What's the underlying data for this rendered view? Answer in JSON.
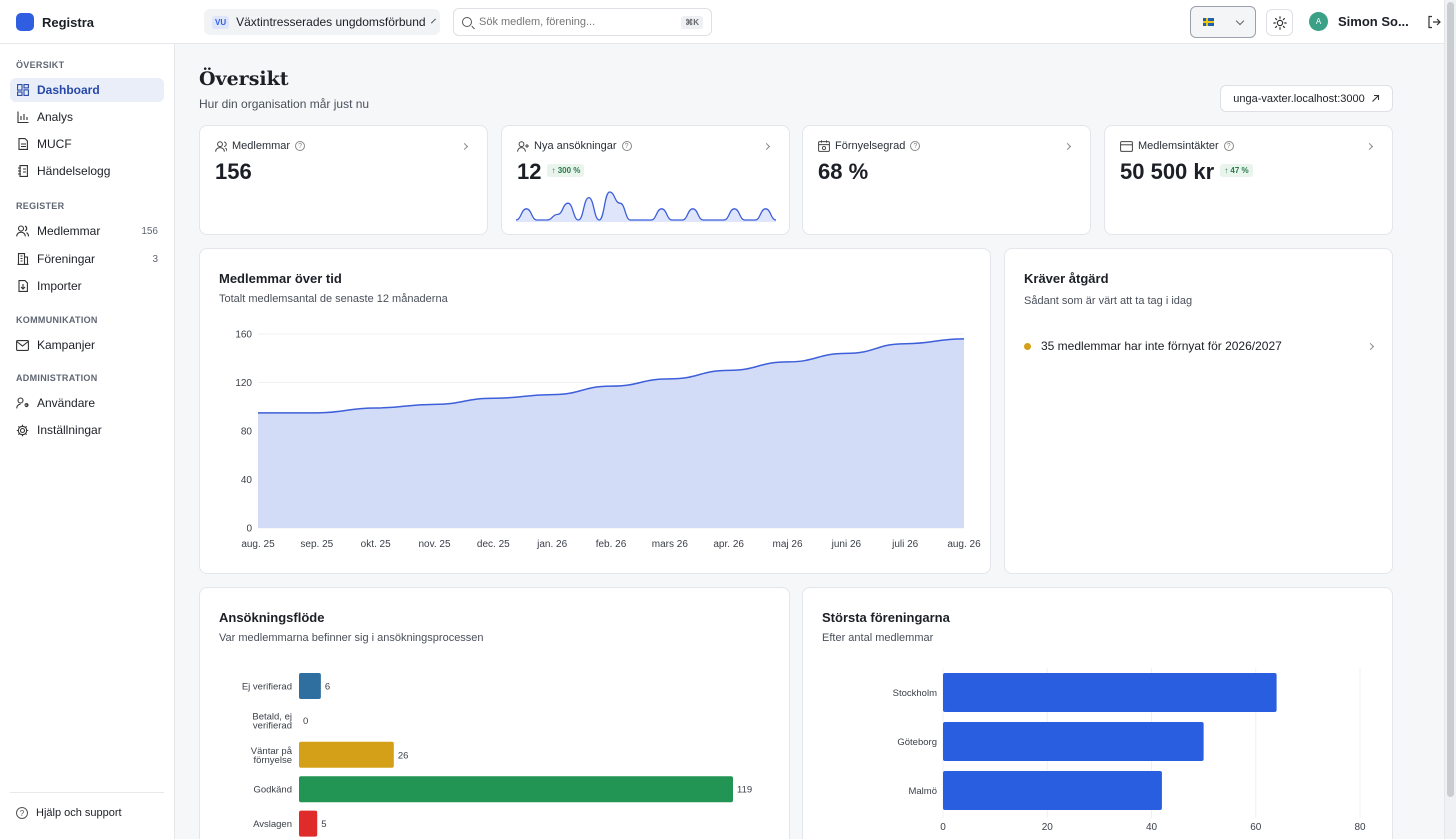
{
  "app": {
    "name": "Registra"
  },
  "org": {
    "badge": "VU",
    "name": "Växtintresserades ungdomsförbund"
  },
  "search": {
    "placeholder": "Sök medlem, förening...",
    "shortcut": "⌘K"
  },
  "user": {
    "initials": "A",
    "name": "Simon So..."
  },
  "sidebar": {
    "sections": [
      {
        "title": "ÖVERSIKT",
        "items": [
          {
            "label": "Dashboard",
            "icon": "dashboard-icon",
            "active": true
          },
          {
            "label": "Analys",
            "icon": "chart-icon"
          },
          {
            "label": "MUCF",
            "icon": "document-icon"
          },
          {
            "label": "Händelselogg",
            "icon": "log-icon"
          }
        ]
      },
      {
        "title": "REGISTER",
        "items": [
          {
            "label": "Medlemmar",
            "icon": "users-icon",
            "count": "156"
          },
          {
            "label": "Föreningar",
            "icon": "building-icon",
            "count": "3"
          },
          {
            "label": "Importer",
            "icon": "import-icon"
          }
        ]
      },
      {
        "title": "KOMMUNIKATION",
        "items": [
          {
            "label": "Kampanjer",
            "icon": "mail-icon"
          }
        ]
      },
      {
        "title": "ADMINISTRATION",
        "items": [
          {
            "label": "Användare",
            "icon": "user-key-icon"
          },
          {
            "label": "Inställningar",
            "icon": "gear-icon"
          }
        ]
      }
    ],
    "help": "Hjälp och support"
  },
  "header": {
    "title": "Översikt",
    "subtitle": "Hur din organisation mår just nu",
    "url": "unga-vaxter.localhost:3000"
  },
  "stats": [
    {
      "label": "Medlemmar",
      "value": "156",
      "delta": "",
      "icon": "users-icon"
    },
    {
      "label": "Nya ansökningar",
      "value": "12",
      "delta": "↑ 300 %",
      "icon": "user-plus-icon"
    },
    {
      "label": "Förnyelsegrad",
      "value": "68 %",
      "delta": "",
      "icon": "calendar-icon"
    },
    {
      "label": "Medlemsintäkter",
      "value": "50 500 kr",
      "delta": "↑ 47 %",
      "icon": "card-icon"
    }
  ],
  "sparkline": {
    "values": [
      0,
      2,
      0,
      0,
      1,
      3,
      0,
      4,
      0,
      5,
      3,
      0,
      0,
      0,
      2,
      0,
      0,
      2,
      0,
      0,
      0,
      2,
      0,
      0,
      2,
      0
    ]
  },
  "members_chart": {
    "title": "Medlemmar över tid",
    "subtitle": "Totalt medlemsantal de senaste 12 månaderna",
    "chart_data": {
      "type": "area",
      "x": [
        "aug. 25",
        "sep. 25",
        "okt. 25",
        "nov. 25",
        "dec. 25",
        "jan. 26",
        "feb. 26",
        "mars 26",
        "apr. 26",
        "maj 26",
        "juni 26",
        "juli 26",
        "aug. 26"
      ],
      "values": [
        95,
        95,
        99,
        102,
        107,
        110,
        117,
        123,
        130,
        137,
        144,
        152,
        156
      ],
      "ylim": [
        0,
        160
      ],
      "yticks": [
        "160",
        "120",
        "80",
        "40",
        "0"
      ],
      "color": "#3d5fd9"
    }
  },
  "action": {
    "title": "Kräver åtgärd",
    "subtitle": "Sådant som är värt att ta tag i idag",
    "items": [
      {
        "text": "35 medlemmar har inte förnyat för 2026/2027"
      }
    ]
  },
  "funnel": {
    "title": "Ansökningsflöde",
    "subtitle": "Var medlemmarna befinner sig i ansökningsprocessen",
    "chart_data": {
      "type": "bar",
      "categories": [
        [
          "Ej verifierad"
        ],
        [
          "Betald, ej",
          "verifierad"
        ],
        [
          "Väntar på",
          "förnyelse"
        ],
        [
          "Godkänd"
        ],
        [
          "Avslagen"
        ]
      ],
      "values": [
        6,
        0,
        26,
        119,
        5
      ],
      "value_labels": [
        "6",
        "0",
        "26",
        "119",
        "5"
      ],
      "colors": [
        "#2f6f9f",
        "#888888",
        "#d4a017",
        "#229454",
        "#e02b2b"
      ],
      "xmax": 119
    }
  },
  "largest": {
    "title": "Största föreningarna",
    "subtitle": "Efter antal medlemmar",
    "chart_data": {
      "type": "bar",
      "categories": [
        "Stockholm",
        "Göteborg",
        "Malmö"
      ],
      "values": [
        64,
        50,
        42
      ],
      "xlim": [
        0,
        80
      ],
      "xticks": [
        "0",
        "20",
        "40",
        "60",
        "80"
      ],
      "color": "#2a5ee0"
    }
  }
}
